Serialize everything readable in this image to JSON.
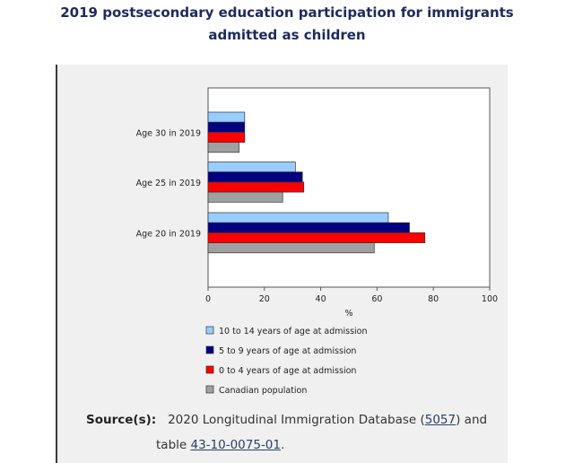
{
  "page": {
    "title_line1": "2019 postsecondary education participation for immigrants",
    "title_line2": "admitted as children"
  },
  "chart_data": {
    "type": "bar",
    "orientation": "horizontal",
    "title": "",
    "xlabel": "%",
    "ylabel": "",
    "xlim": [
      0,
      100
    ],
    "xticks": [
      0,
      20,
      40,
      60,
      80,
      100
    ],
    "categories": [
      "Age 30 in 2019",
      "Age 25 in 2019",
      "Age 20 in 2019"
    ],
    "series": [
      {
        "name": "10 to 14 years of age at admission",
        "color": "#99ccff",
        "values": [
          13,
          31,
          64
        ]
      },
      {
        "name": "5 to 9 years of age at admission",
        "color": "#000080",
        "values": [
          13,
          33.5,
          71.5
        ]
      },
      {
        "name": "0 to 4 years of age at admission",
        "color": "#ff0000",
        "values": [
          13,
          34,
          77
        ]
      },
      {
        "name": "Canadian population",
        "color": "#a0a0a0",
        "values": [
          11,
          26.5,
          59
        ]
      }
    ],
    "grid": false,
    "legend_position": "bottom"
  },
  "source": {
    "label": "Source(s):",
    "text_before": "2020 Longitudinal Immigration Database (",
    "link1": "5057",
    "text_middle": ") and",
    "text_line2": "table ",
    "link2": "43-10-0075-01",
    "text_end": "."
  }
}
